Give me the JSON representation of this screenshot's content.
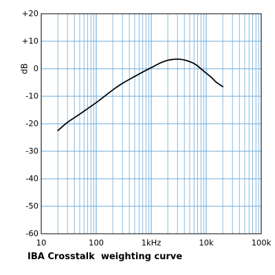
{
  "chart_data": {
    "type": "line",
    "title": "IBA Crosstalk  weighting curve",
    "xlabel": "",
    "ylabel": "dB",
    "x_scale": "log",
    "xlim": [
      10,
      100000
    ],
    "ylim": [
      -60,
      20
    ],
    "x_ticks": [
      {
        "value": 10,
        "label": "10"
      },
      {
        "value": 100,
        "label": "100"
      },
      {
        "value": 1000,
        "label": "1kHz"
      },
      {
        "value": 10000,
        "label": "10k"
      },
      {
        "value": 100000,
        "label": "100k"
      }
    ],
    "y_ticks": [
      {
        "value": 20,
        "label": "+20"
      },
      {
        "value": 10,
        "label": "+10"
      },
      {
        "value": 0,
        "label": "0"
      },
      {
        "value": -10,
        "label": "-10"
      },
      {
        "value": -20,
        "label": "-20"
      },
      {
        "value": -30,
        "label": "-30"
      },
      {
        "value": -40,
        "label": "-40"
      },
      {
        "value": -50,
        "label": "-50"
      },
      {
        "value": -60,
        "label": "-60"
      }
    ],
    "grid": true,
    "colors": {
      "grid": "#6aa8d8",
      "curve": "#000000",
      "axis": "#000000"
    },
    "series": [
      {
        "x": [
          20,
          30,
          50,
          100,
          200,
          300,
          500,
          700,
          1000,
          1500,
          2000,
          2500,
          3000,
          3500,
          4000,
          5000,
          6000,
          7000,
          8000,
          10000,
          12500,
          15000,
          20000
        ],
        "y": [
          -22.5,
          -19.5,
          -16.5,
          -12.3,
          -7.7,
          -5.3,
          -2.8,
          -1.2,
          0.4,
          2.2,
          3.1,
          3.4,
          3.5,
          3.4,
          3.2,
          2.6,
          1.9,
          1.0,
          0.0,
          -1.6,
          -3.2,
          -4.8,
          -6.5
        ]
      }
    ]
  }
}
